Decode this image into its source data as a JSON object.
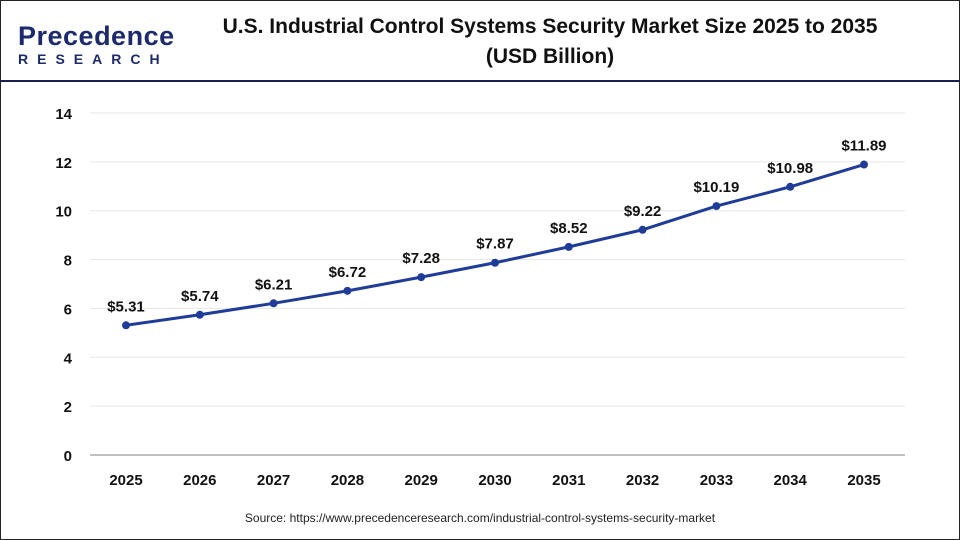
{
  "header": {
    "logo_line1": "Precedence",
    "logo_line2": "RESEARCH",
    "title_line1": "U.S. Industrial Control Systems Security Market Size 2025 to 2035",
    "title_line2": "(USD Billion)"
  },
  "source": "Source: https://www.precedenceresearch.com/industrial-control-systems-security-market",
  "colors": {
    "line": "#1f3c99",
    "grid": "#e6e6e6",
    "axis": "#c0c0c0"
  },
  "chart_data": {
    "type": "line",
    "title": "U.S. Industrial Control Systems Security Market Size 2025 to 2035 (USD Billion)",
    "xlabel": "",
    "ylabel": "",
    "categories": [
      "2025",
      "2026",
      "2027",
      "2028",
      "2029",
      "2030",
      "2031",
      "2032",
      "2033",
      "2034",
      "2035"
    ],
    "values": [
      5.31,
      5.74,
      6.21,
      6.72,
      7.28,
      7.87,
      8.52,
      9.22,
      10.19,
      10.98,
      11.89
    ],
    "labels": [
      "$5.31",
      "$5.74",
      "$6.21",
      "$6.72",
      "$7.28",
      "$7.87",
      "$8.52",
      "$9.22",
      "$10.19",
      "$10.98",
      "$11.89"
    ],
    "yticks": [
      "0",
      "2",
      "4",
      "6",
      "8",
      "10",
      "12",
      "14"
    ],
    "ylim": [
      0,
      14
    ],
    "grid": true,
    "legend": "none"
  }
}
